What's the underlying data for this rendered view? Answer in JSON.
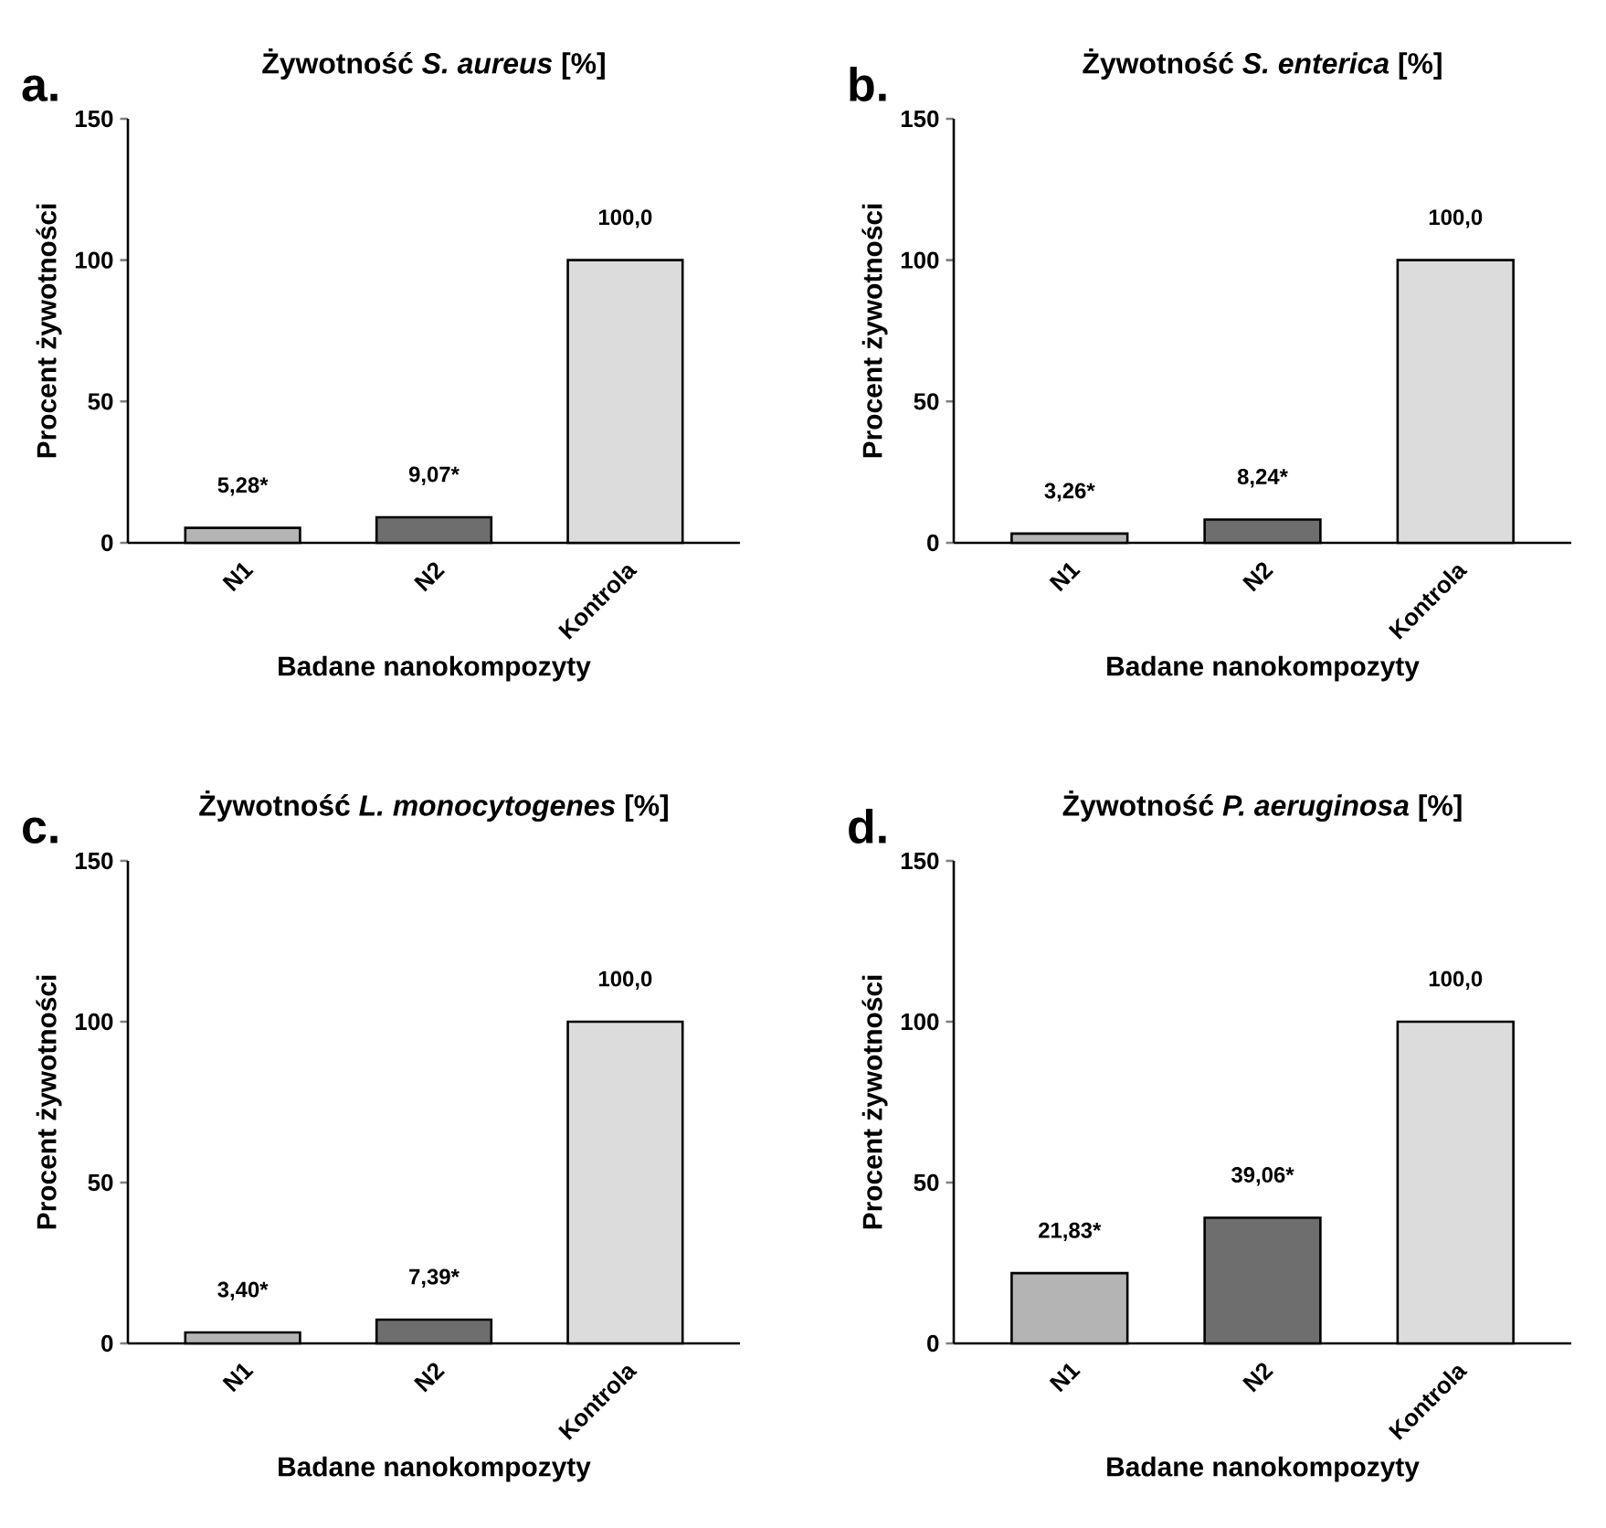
{
  "chart_data": [
    {
      "type": "bar",
      "title": "Żywotność *S. aureus* [%]",
      "xlabel": "Badane nanokompozyty",
      "ylabel": "Procent żywotności",
      "categories": [
        "N1",
        "N2",
        "Kontrola"
      ],
      "values": [
        5.28,
        9.07,
        100.0
      ],
      "value_labels": [
        "5,28*",
        "9,07*",
        "100,0"
      ],
      "colors": [
        "#b4b4b4",
        "#6e6e6e",
        "#dcdcdc"
      ],
      "ylim": [
        0,
        150
      ],
      "yticks": [
        0,
        50,
        100,
        150
      ],
      "annotations": [
        "a."
      ]
    },
    {
      "type": "bar",
      "title": "Żywotność *S. enterica* [%]",
      "xlabel": "Badane nanokompozyty",
      "ylabel": "Procent żywotności",
      "categories": [
        "N1",
        "N2",
        "Kontrola"
      ],
      "values": [
        3.26,
        8.24,
        100.0
      ],
      "value_labels": [
        "3,26*",
        "8,24*",
        "100,0"
      ],
      "colors": [
        "#b4b4b4",
        "#6e6e6e",
        "#dcdcdc"
      ],
      "ylim": [
        0,
        150
      ],
      "yticks": [
        0,
        50,
        100,
        150
      ],
      "annotations": [
        "b."
      ]
    },
    {
      "type": "bar",
      "title": "Żywotność *L. monocytogenes* [%]",
      "xlabel": "Badane nanokompozyty",
      "ylabel": "Procent żywotności",
      "categories": [
        "N1",
        "N2",
        "Kontrola"
      ],
      "values": [
        3.4,
        7.39,
        100.0
      ],
      "value_labels": [
        "3,40*",
        "7,39*",
        "100,0"
      ],
      "colors": [
        "#b4b4b4",
        "#6e6e6e",
        "#dcdcdc"
      ],
      "ylim": [
        0,
        150
      ],
      "yticks": [
        0,
        50,
        100,
        150
      ],
      "annotations": [
        "c."
      ]
    },
    {
      "type": "bar",
      "title": "Żywotność *P. aeruginosa* [%]",
      "xlabel": "Badane nanokompozyty",
      "ylabel": "Procent żywotności",
      "categories": [
        "N1",
        "N2",
        "Kontrola"
      ],
      "values": [
        21.83,
        39.06,
        100.0
      ],
      "value_labels": [
        "21,83*",
        "39,06*",
        "100,0"
      ],
      "colors": [
        "#b4b4b4",
        "#6e6e6e",
        "#dcdcdc"
      ],
      "ylim": [
        0,
        150
      ],
      "yticks": [
        0,
        50,
        100,
        150
      ],
      "annotations": [
        "d."
      ]
    }
  ]
}
